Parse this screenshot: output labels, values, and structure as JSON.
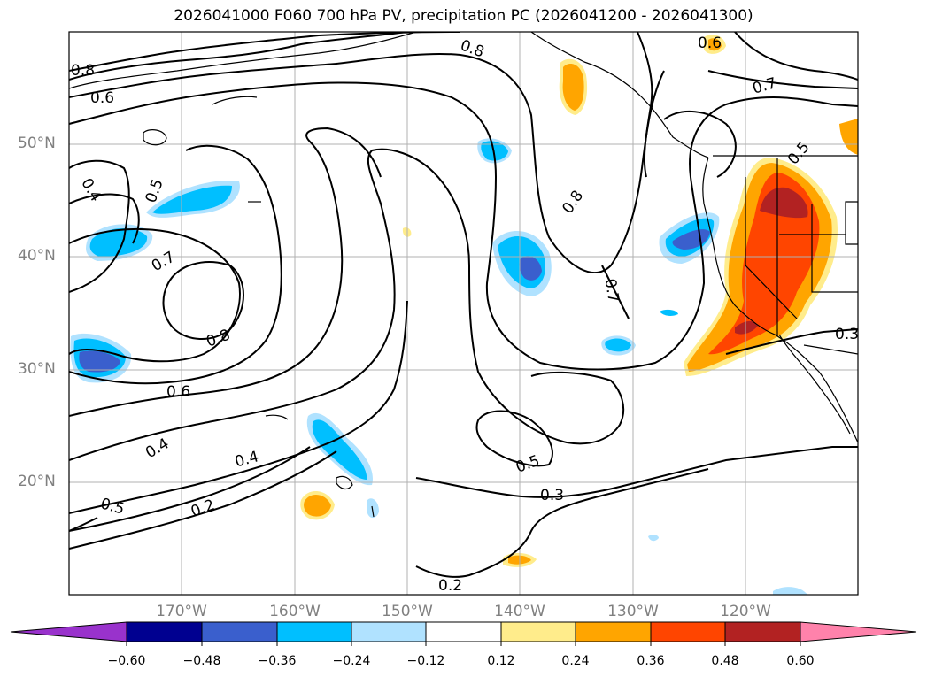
{
  "title": "2026041000 F060 700 hPa PV, precipitation PC (2026041200 - 2026041300)",
  "lat_labels": [
    "50°N",
    "40°N",
    "30°N",
    "20°N"
  ],
  "lon_labels": [
    "170°W",
    "160°W",
    "150°W",
    "140°W",
    "130°W",
    "120°W"
  ],
  "contour_labels": [
    "0.8",
    "0.6",
    "0.4",
    "0.5",
    "0.7",
    "0.8",
    "0.6",
    "0.4",
    "0.4",
    "0.5",
    "0.2",
    "0.8",
    "0.8",
    "0.7",
    "0.5",
    "0.3",
    "0.2",
    "0.6",
    "0.7",
    "0.5",
    "0.3"
  ],
  "colorbar": {
    "ticks": [
      "−0.60",
      "−0.48",
      "−0.36",
      "−0.24",
      "−0.12",
      "0.12",
      "0.24",
      "0.36",
      "0.48",
      "0.60"
    ],
    "colors": [
      "#9932cc",
      "#000090",
      "#3a5fcd",
      "#00bfff",
      "#b0e2ff",
      "#ffffff",
      "#ffec8b",
      "#ffa500",
      "#ff4500",
      "#b22222",
      "#ff82ab"
    ]
  }
}
